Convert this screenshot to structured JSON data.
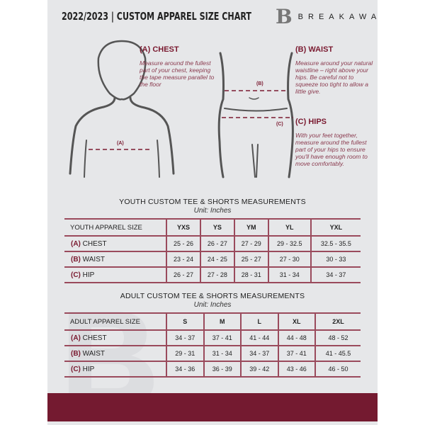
{
  "header": {
    "title": "2022/2023  |  CUSTOM APPAREL SIZE CHART",
    "brand": "BREAKAWAY",
    "logo_mark": "B"
  },
  "measure": {
    "chest": {
      "title": "(A) CHEST",
      "desc": "Measure around the fullest part of your chest, keeping the tape measure parallel to the floor",
      "marker": "(A)"
    },
    "waist": {
      "title": "(B) WAIST",
      "desc": "Measure around your natural waistline – right above your hips. Be careful not to squeeze too tight to allow a little give.",
      "marker": "(B)"
    },
    "hips": {
      "title": "(C) HIPS",
      "desc": "With your feet together, measure around the fullest part of your hips to ensure you'll have enough room to move comfortably.",
      "marker": "(C)"
    }
  },
  "youth": {
    "title": "YOUTH CUSTOM TEE & SHORTS MEASUREMENTS",
    "unit": "Unit: Inches",
    "header": "YOUTH APPAREL SIZE",
    "sizes": [
      "YXS",
      "YS",
      "YM",
      "YL",
      "YXL"
    ],
    "rows": [
      {
        "letter": "(A)",
        "name": "CHEST",
        "values": [
          "25 - 26",
          "26 - 27",
          "27 - 29",
          "29 - 32.5",
          "32.5 - 35.5"
        ]
      },
      {
        "letter": "(B)",
        "name": "WAIST",
        "values": [
          "23 - 24",
          "24 - 25",
          "25 - 27",
          "27 - 30",
          "30 - 33"
        ]
      },
      {
        "letter": "(C)",
        "name": "HIP",
        "values": [
          "26 - 27",
          "27 - 28",
          "28 - 31",
          "31 - 34",
          "34 - 37"
        ]
      }
    ]
  },
  "adult": {
    "title": "ADULT CUSTOM TEE & SHORTS MEASUREMENTS",
    "unit": "Unit: Inches",
    "header": "ADULT APPAREL SIZE",
    "sizes": [
      "S",
      "M",
      "L",
      "XL",
      "2XL"
    ],
    "rows": [
      {
        "letter": "(A)",
        "name": "CHEST",
        "values": [
          "34 - 37",
          "37 - 41",
          "41 - 44",
          "44 - 48",
          "48 - 52"
        ]
      },
      {
        "letter": "(B)",
        "name": "WAIST",
        "values": [
          "29 - 31",
          "31 - 34",
          "34 - 37",
          "37 - 41",
          "41 - 45.5"
        ]
      },
      {
        "letter": "(C)",
        "name": "HIP",
        "values": [
          "34 - 36",
          "36 - 39",
          "39 - 42",
          "43 - 46",
          "46 - 50"
        ]
      }
    ]
  },
  "colors": {
    "accent": "#741a30",
    "panel": "#e6e7e9"
  }
}
